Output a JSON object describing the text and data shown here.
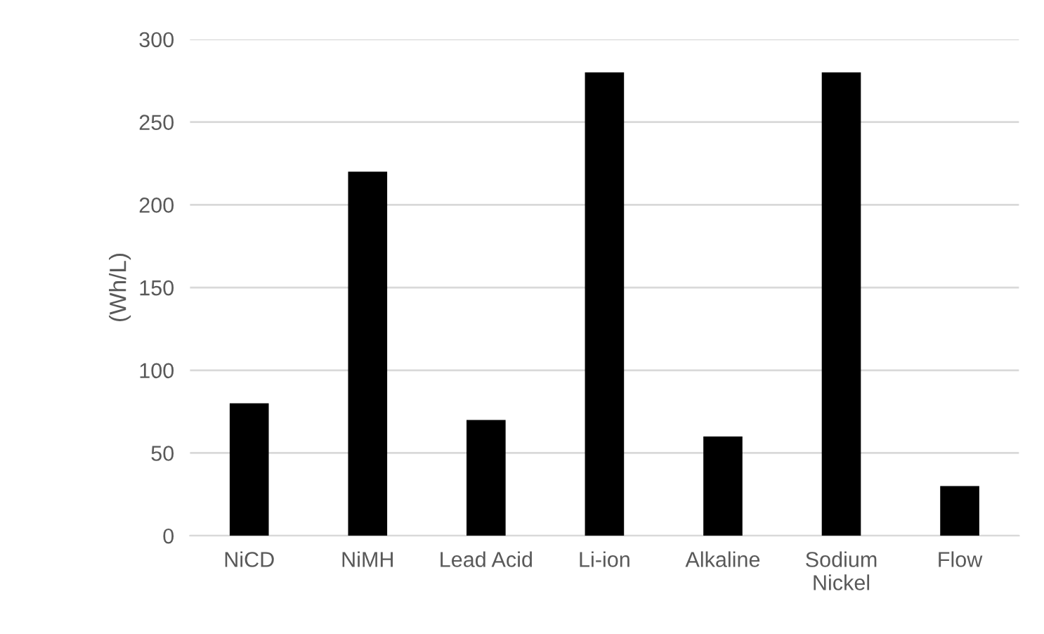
{
  "chart_data": {
    "type": "bar",
    "ylabel": "(Wh/L)",
    "categories": [
      "NiCD",
      "NiMH",
      "Lead Acid",
      "Li-ion",
      "Alkaline",
      "Sodium\nNickel",
      "Flow"
    ],
    "values": [
      80,
      220,
      70,
      280,
      60,
      280,
      30
    ],
    "color": "#000000",
    "ylim": [
      0,
      300
    ],
    "yticks": [
      0,
      50,
      100,
      150,
      200,
      250,
      300
    ],
    "grid": "y",
    "legend": false
  }
}
